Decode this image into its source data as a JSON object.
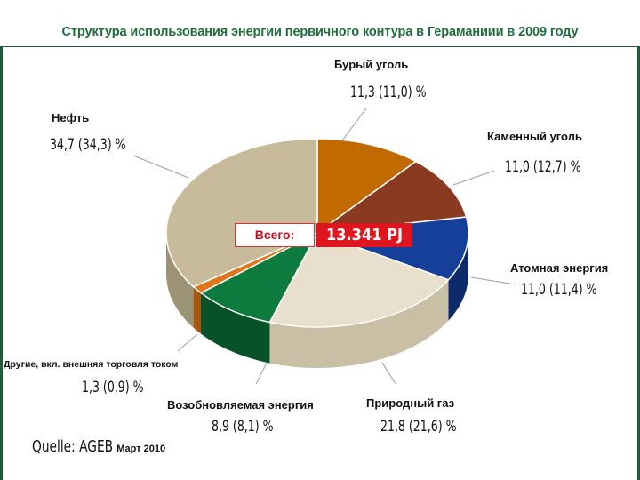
{
  "chart_data": {
    "type": "pie",
    "title": "Структура использования энергии  первичного контура в Гераманиии в 2009 году",
    "total_label": "Всего:",
    "total_value": "13.341 PJ",
    "slices": [
      {
        "name": "Бурый уголь",
        "value": 11.3,
        "value_label": "11,3 (11,0) %",
        "color": "#c06a00",
        "side": "#8a4c00"
      },
      {
        "name": "Каменный уголь",
        "value": 11.0,
        "value_label": "11,0 (12,7) %",
        "color": "#8b3a22",
        "side": "#5e2716"
      },
      {
        "name": "Атомная энергия",
        "value": 11.0,
        "value_label": "11,0 (11,4) %",
        "color": "#163f99",
        "side": "#0d2a6b"
      },
      {
        "name": "Природный газ",
        "value": 21.8,
        "value_label": "21,8 (21,6) %",
        "color": "#e8e0cc",
        "side": "#c9bfa5"
      },
      {
        "name": "Возобновляемая энергия",
        "value": 8.9,
        "value_label": "8,9 (8,1) %",
        "color": "#0d7a3e",
        "side": "#075228"
      },
      {
        "name": "Другие, вкл. внешняя торговля током",
        "value": 1.3,
        "value_label": "1,3 (0,9) %",
        "color": "#e0751a",
        "side": "#a85510"
      },
      {
        "name": "Нефть",
        "value": 34.7,
        "value_label": "34,7 (34,3) %",
        "color": "#c7bb9b",
        "side": "#9c9274"
      }
    ],
    "source": "Quelle: AGEB",
    "source_date": "Март 2010"
  }
}
